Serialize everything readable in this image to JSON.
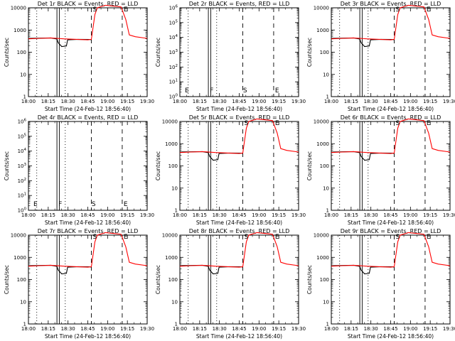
{
  "chart_data": [
    {
      "type": "line",
      "title": "Det 1r BLACK = Events, RED = LLD",
      "xlabel": "Start Time (24-Feb-12 18:56:40)",
      "ylabel": "Counts/sec",
      "yscale": "log",
      "ylim": [
        1,
        10000
      ],
      "yticklabels": [
        "1",
        "10",
        "100",
        "1000",
        "10000"
      ],
      "xticklabels": [
        "18:00",
        "18:15",
        "18:30",
        "18:45",
        "19:00",
        "19:15",
        "19:30"
      ],
      "legend": [],
      "series": [
        {
          "color": "#000000",
          "points": [
            [
              0.0,
              420
            ],
            [
              0.09,
              430
            ],
            [
              0.19,
              440
            ],
            [
              0.24,
              390
            ],
            [
              0.25,
              270
            ],
            [
              0.28,
              180
            ],
            [
              0.32,
              190
            ],
            [
              0.33,
              360
            ],
            [
              0.42,
              380
            ],
            [
              0.52,
              375
            ],
            [
              0.53,
              360
            ]
          ]
        },
        {
          "color": "#ff0000",
          "points": [
            [
              0.0,
              400
            ],
            [
              0.09,
              420
            ],
            [
              0.19,
              440
            ],
            [
              0.3,
              400
            ],
            [
              0.5,
              360
            ],
            [
              0.53,
              380
            ],
            [
              0.56,
              5000
            ],
            [
              0.58,
              10000
            ],
            [
              0.65,
              13000
            ],
            [
              0.78,
              11000
            ],
            [
              0.82,
              3000
            ],
            [
              0.85,
              600
            ],
            [
              0.9,
              500
            ],
            [
              1.0,
              420
            ]
          ]
        }
      ],
      "markers": [
        "S",
        "E"
      ]
    },
    {
      "type": "line",
      "title": "Det 2r BLACK = Events, RED = LLD",
      "xlabel": "Start Time (24-Feb-12 18:56:40)",
      "ylabel": "Counts/sec",
      "yscale": "log",
      "ylim": [
        1,
        1000000
      ],
      "yticklabels": [
        "10^0",
        "10^1",
        "10^2",
        "10^3",
        "10^4",
        "10^5",
        "10^6"
      ],
      "xticklabels": [
        "18:00",
        "18:15",
        "18:30",
        "18:45",
        "19:00",
        "19:15",
        "19:30"
      ],
      "legend": [],
      "series": [],
      "markers": [
        "E",
        "F",
        "S",
        "E"
      ]
    },
    {
      "type": "line",
      "title": "Det 3r BLACK = Events, RED = LLD",
      "xlabel": "Start Time (24-Feb-12 18:56:40)",
      "ylabel": "Counts/sec",
      "yscale": "log",
      "ylim": [
        1,
        10000
      ],
      "yticklabels": [
        "1",
        "10",
        "100",
        "1000",
        "10000"
      ],
      "xticklabels": [
        "18:00",
        "18:15",
        "18:30",
        "18:45",
        "19:00",
        "19:15",
        "19:30"
      ],
      "legend": [],
      "series": [
        {
          "color": "#000000",
          "points": [
            [
              0.0,
              420
            ],
            [
              0.09,
              430
            ],
            [
              0.19,
              440
            ],
            [
              0.24,
              390
            ],
            [
              0.25,
              270
            ],
            [
              0.28,
              180
            ],
            [
              0.32,
              190
            ],
            [
              0.33,
              360
            ],
            [
              0.42,
              380
            ],
            [
              0.52,
              375
            ],
            [
              0.53,
              360
            ]
          ]
        },
        {
          "color": "#ff0000",
          "points": [
            [
              0.0,
              400
            ],
            [
              0.09,
              420
            ],
            [
              0.19,
              440
            ],
            [
              0.3,
              400
            ],
            [
              0.5,
              360
            ],
            [
              0.53,
              380
            ],
            [
              0.56,
              5000
            ],
            [
              0.58,
              10000
            ],
            [
              0.65,
              13000
            ],
            [
              0.78,
              11000
            ],
            [
              0.82,
              3000
            ],
            [
              0.85,
              600
            ],
            [
              0.9,
              500
            ],
            [
              1.0,
              420
            ]
          ]
        }
      ],
      "markers": [
        "S",
        "E"
      ]
    },
    {
      "type": "line",
      "title": "Det 4r BLACK = Events, RED = LLD",
      "xlabel": "Start Time (24-Feb-12 18:56:40)",
      "ylabel": "Counts/sec",
      "yscale": "log",
      "ylim": [
        1,
        1000000
      ],
      "yticklabels": [
        "10^0",
        "10^1",
        "10^2",
        "10^3",
        "10^4",
        "10^5",
        "10^6"
      ],
      "xticklabels": [
        "18:00",
        "18:15",
        "18:30",
        "18:45",
        "19:00",
        "19:15",
        "19:30"
      ],
      "legend": [],
      "series": [],
      "markers": [
        "E",
        "F",
        "S",
        "E"
      ]
    },
    {
      "type": "line",
      "title": "Det 5r BLACK = Events, RED = LLD",
      "xlabel": "Start Time (24-Feb-12 18:56:40)",
      "ylabel": "Counts/sec",
      "yscale": "log",
      "ylim": [
        1,
        10000
      ],
      "yticklabels": [
        "1",
        "10",
        "100",
        "1000",
        "10000"
      ],
      "xticklabels": [
        "18:00",
        "18:15",
        "18:30",
        "18:45",
        "19:00",
        "19:15",
        "19:30"
      ],
      "legend": [],
      "series": [
        {
          "color": "#000000",
          "points": [
            [
              0.0,
              420
            ],
            [
              0.09,
              430
            ],
            [
              0.19,
              440
            ],
            [
              0.24,
              390
            ],
            [
              0.25,
              270
            ],
            [
              0.28,
              180
            ],
            [
              0.32,
              190
            ],
            [
              0.33,
              360
            ],
            [
              0.42,
              380
            ],
            [
              0.52,
              375
            ],
            [
              0.53,
              360
            ]
          ]
        },
        {
          "color": "#ff0000",
          "points": [
            [
              0.0,
              400
            ],
            [
              0.09,
              420
            ],
            [
              0.19,
              440
            ],
            [
              0.3,
              400
            ],
            [
              0.5,
              360
            ],
            [
              0.53,
              380
            ],
            [
              0.56,
              5000
            ],
            [
              0.58,
              10000
            ],
            [
              0.65,
              13000
            ],
            [
              0.78,
              11000
            ],
            [
              0.82,
              3000
            ],
            [
              0.85,
              600
            ],
            [
              0.9,
              500
            ],
            [
              1.0,
              420
            ]
          ]
        }
      ],
      "markers": [
        "S",
        "E"
      ]
    },
    {
      "type": "line",
      "title": "Det 6r BLACK = Events, RED = LLD",
      "xlabel": "Start Time (24-Feb-12 18:56:40)",
      "ylabel": "Counts/sec",
      "yscale": "log",
      "ylim": [
        1,
        10000
      ],
      "yticklabels": [
        "1",
        "10",
        "100",
        "1000",
        "10000"
      ],
      "xticklabels": [
        "18:00",
        "18:15",
        "18:30",
        "18:45",
        "19:00",
        "19:15",
        "19:30"
      ],
      "legend": [],
      "series": [
        {
          "color": "#000000",
          "points": [
            [
              0.0,
              420
            ],
            [
              0.09,
              430
            ],
            [
              0.19,
              440
            ],
            [
              0.24,
              390
            ],
            [
              0.25,
              270
            ],
            [
              0.28,
              180
            ],
            [
              0.32,
              190
            ],
            [
              0.33,
              360
            ],
            [
              0.42,
              380
            ],
            [
              0.52,
              375
            ],
            [
              0.53,
              360
            ]
          ]
        },
        {
          "color": "#ff0000",
          "points": [
            [
              0.0,
              400
            ],
            [
              0.09,
              420
            ],
            [
              0.19,
              440
            ],
            [
              0.3,
              400
            ],
            [
              0.5,
              360
            ],
            [
              0.53,
              380
            ],
            [
              0.56,
              5000
            ],
            [
              0.58,
              10000
            ],
            [
              0.65,
              13000
            ],
            [
              0.78,
              11000
            ],
            [
              0.82,
              3000
            ],
            [
              0.85,
              600
            ],
            [
              0.9,
              500
            ],
            [
              1.0,
              420
            ]
          ]
        }
      ],
      "markers": [
        "S",
        "E"
      ]
    },
    {
      "type": "line",
      "title": "Det 7r BLACK = Events, RED = LLD",
      "xlabel": "Start Time (24-Feb-12 18:56:40)",
      "ylabel": "Counts/sec",
      "yscale": "log",
      "ylim": [
        1,
        10000
      ],
      "yticklabels": [
        "1",
        "10",
        "100",
        "1000",
        "10000"
      ],
      "xticklabels": [
        "18:00",
        "18:15",
        "18:30",
        "18:45",
        "19:00",
        "19:15",
        "19:30"
      ],
      "legend": [],
      "series": [
        {
          "color": "#000000",
          "points": [
            [
              0.0,
              420
            ],
            [
              0.09,
              430
            ],
            [
              0.19,
              440
            ],
            [
              0.24,
              390
            ],
            [
              0.25,
              270
            ],
            [
              0.28,
              180
            ],
            [
              0.32,
              190
            ],
            [
              0.33,
              360
            ],
            [
              0.42,
              380
            ],
            [
              0.52,
              375
            ],
            [
              0.53,
              360
            ]
          ]
        },
        {
          "color": "#ff0000",
          "points": [
            [
              0.0,
              400
            ],
            [
              0.09,
              420
            ],
            [
              0.19,
              440
            ],
            [
              0.3,
              400
            ],
            [
              0.5,
              360
            ],
            [
              0.53,
              380
            ],
            [
              0.56,
              5000
            ],
            [
              0.58,
              10000
            ],
            [
              0.65,
              13000
            ],
            [
              0.78,
              11000
            ],
            [
              0.82,
              3000
            ],
            [
              0.85,
              600
            ],
            [
              0.9,
              500
            ],
            [
              1.0,
              420
            ]
          ]
        }
      ],
      "markers": [
        "S",
        "E"
      ]
    },
    {
      "type": "line",
      "title": "Det 8r BLACK = Events, RED = LLD",
      "xlabel": "Start Time (24-Feb-12 18:56:40)",
      "ylabel": "Counts/sec",
      "yscale": "log",
      "ylim": [
        1,
        10000
      ],
      "yticklabels": [
        "1",
        "10",
        "100",
        "1000",
        "10000"
      ],
      "xticklabels": [
        "18:00",
        "18:15",
        "18:30",
        "18:45",
        "19:00",
        "19:15",
        "19:30"
      ],
      "legend": [],
      "series": [
        {
          "color": "#000000",
          "points": [
            [
              0.0,
              420
            ],
            [
              0.09,
              430
            ],
            [
              0.19,
              440
            ],
            [
              0.24,
              390
            ],
            [
              0.25,
              270
            ],
            [
              0.28,
              180
            ],
            [
              0.32,
              190
            ],
            [
              0.33,
              360
            ],
            [
              0.42,
              380
            ],
            [
              0.52,
              375
            ],
            [
              0.53,
              360
            ]
          ]
        },
        {
          "color": "#ff0000",
          "points": [
            [
              0.0,
              400
            ],
            [
              0.09,
              420
            ],
            [
              0.19,
              440
            ],
            [
              0.3,
              400
            ],
            [
              0.5,
              360
            ],
            [
              0.53,
              380
            ],
            [
              0.56,
              5000
            ],
            [
              0.58,
              10000
            ],
            [
              0.65,
              13000
            ],
            [
              0.78,
              11000
            ],
            [
              0.82,
              3000
            ],
            [
              0.85,
              600
            ],
            [
              0.9,
              500
            ],
            [
              1.0,
              420
            ]
          ]
        }
      ],
      "markers": [
        "S",
        "E"
      ]
    },
    {
      "type": "line",
      "title": "Det 9r BLACK = Events, RED = LLD",
      "xlabel": "Start Time (24-Feb-12 18:56:40)",
      "ylabel": "Counts/sec",
      "yscale": "log",
      "ylim": [
        1,
        10000
      ],
      "yticklabels": [
        "1",
        "10",
        "100",
        "1000",
        "10000"
      ],
      "xticklabels": [
        "18:00",
        "18:15",
        "18:30",
        "18:45",
        "19:00",
        "19:15",
        "19:30"
      ],
      "legend": [],
      "series": [
        {
          "color": "#000000",
          "points": [
            [
              0.0,
              420
            ],
            [
              0.09,
              430
            ],
            [
              0.19,
              440
            ],
            [
              0.24,
              390
            ],
            [
              0.25,
              270
            ],
            [
              0.28,
              180
            ],
            [
              0.32,
              190
            ],
            [
              0.33,
              360
            ],
            [
              0.42,
              380
            ],
            [
              0.52,
              375
            ],
            [
              0.53,
              360
            ]
          ]
        },
        {
          "color": "#ff0000",
          "points": [
            [
              0.0,
              400
            ],
            [
              0.09,
              420
            ],
            [
              0.19,
              440
            ],
            [
              0.3,
              400
            ],
            [
              0.5,
              360
            ],
            [
              0.53,
              380
            ],
            [
              0.56,
              5000
            ],
            [
              0.58,
              10000
            ],
            [
              0.65,
              13000
            ],
            [
              0.78,
              11000
            ],
            [
              0.82,
              3000
            ],
            [
              0.85,
              600
            ],
            [
              0.9,
              500
            ],
            [
              1.0,
              420
            ]
          ]
        }
      ],
      "markers": [
        "S",
        "E"
      ]
    }
  ]
}
